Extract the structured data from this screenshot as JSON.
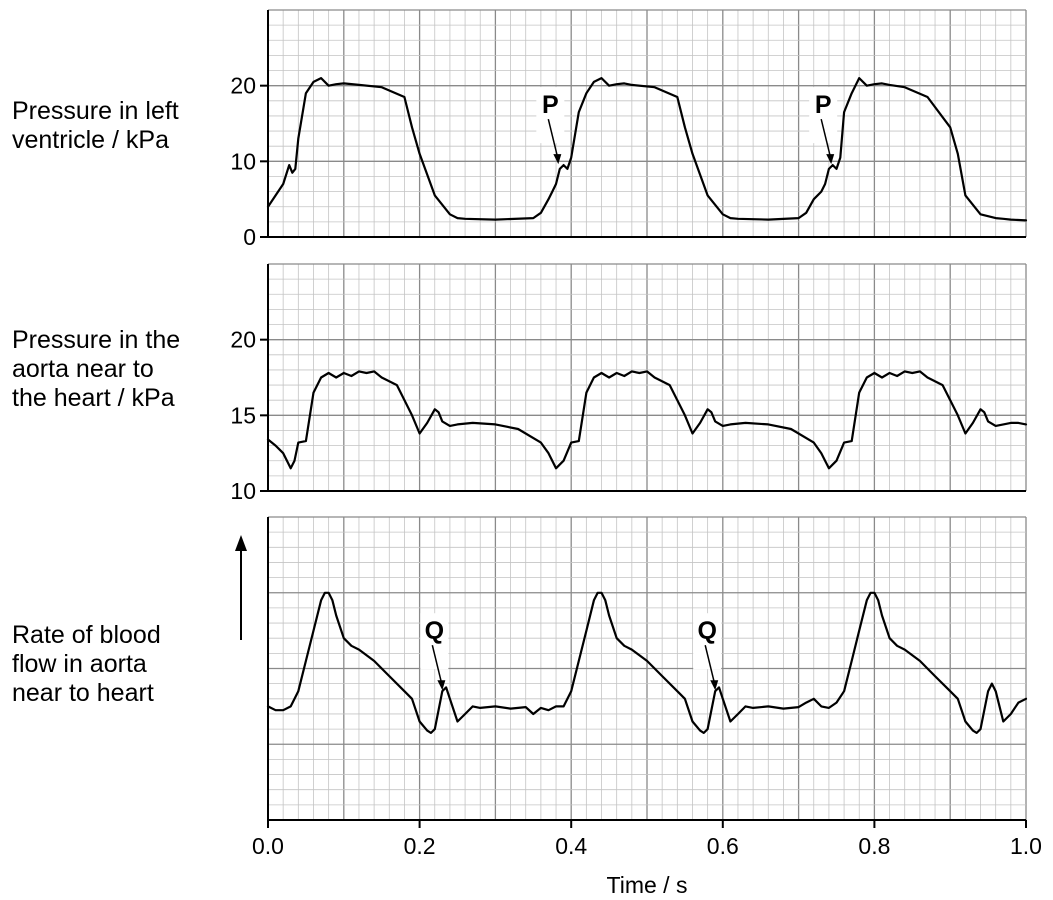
{
  "chart_data": [
    {
      "type": "line",
      "ylabel_lines": [
        "Pressure in left",
        "ventricle / kPa"
      ],
      "yticks": [
        0,
        10,
        20
      ],
      "ylim": [
        0,
        30
      ],
      "grid": true,
      "annotations": [
        {
          "label": "P",
          "x": 0.383,
          "y": 9.5
        },
        {
          "label": "P",
          "x": 0.743,
          "y": 9.5
        }
      ],
      "series": [
        {
          "x": [
            0.0,
            0.01,
            0.02,
            0.028,
            0.032,
            0.036,
            0.04,
            0.05,
            0.06,
            0.07,
            0.08,
            0.09,
            0.1,
            0.12,
            0.15,
            0.18,
            0.19,
            0.2,
            0.22,
            0.24,
            0.25,
            0.26,
            0.3,
            0.35,
            0.36,
            0.37,
            0.375,
            0.38,
            0.385,
            0.39,
            0.395,
            0.4,
            0.41,
            0.42,
            0.43,
            0.44,
            0.45,
            0.46,
            0.47,
            0.48,
            0.51,
            0.54,
            0.55,
            0.56,
            0.58,
            0.6,
            0.61,
            0.62,
            0.66,
            0.7,
            0.71,
            0.72,
            0.73,
            0.735,
            0.74,
            0.745,
            0.75,
            0.755,
            0.76,
            0.77,
            0.78,
            0.79,
            0.8,
            0.81,
            0.82,
            0.84,
            0.87,
            0.9,
            0.91,
            0.92,
            0.94,
            0.96,
            0.97,
            0.98,
            1.0
          ],
          "y": [
            4.0,
            5.5,
            7.0,
            9.5,
            8.5,
            9.0,
            13.0,
            19.0,
            20.5,
            21.0,
            20.0,
            20.2,
            20.3,
            20.1,
            19.8,
            18.5,
            14.5,
            11.0,
            5.5,
            3.0,
            2.5,
            2.4,
            2.3,
            2.5,
            3.2,
            5.0,
            6.0,
            7.0,
            9.0,
            9.5,
            9.0,
            10.5,
            16.5,
            19.0,
            20.5,
            21.0,
            20.0,
            20.2,
            20.3,
            20.1,
            19.8,
            18.5,
            14.5,
            11.0,
            5.5,
            3.0,
            2.5,
            2.4,
            2.3,
            2.5,
            3.2,
            5.0,
            6.0,
            7.0,
            9.0,
            9.5,
            9.0,
            10.5,
            16.5,
            19.0,
            21.0,
            20.0,
            20.2,
            20.3,
            20.1,
            19.8,
            18.5,
            14.5,
            11.0,
            5.5,
            3.0,
            2.5,
            2.4,
            2.3,
            2.2
          ]
        }
      ]
    },
    {
      "type": "line",
      "ylabel_lines": [
        "Pressure in the",
        "aorta near to",
        "the heart / kPa"
      ],
      "yticks": [
        10,
        15,
        20
      ],
      "ylim": [
        10,
        25
      ],
      "grid": true,
      "series": [
        {
          "x": [
            0.0,
            0.01,
            0.02,
            0.03,
            0.035,
            0.04,
            0.05,
            0.06,
            0.07,
            0.08,
            0.09,
            0.1,
            0.11,
            0.12,
            0.13,
            0.14,
            0.15,
            0.17,
            0.19,
            0.2,
            0.21,
            0.22,
            0.225,
            0.23,
            0.24,
            0.25,
            0.27,
            0.3,
            0.33,
            0.36,
            0.37,
            0.38,
            0.39,
            0.4,
            0.41,
            0.42,
            0.43,
            0.44,
            0.45,
            0.46,
            0.47,
            0.48,
            0.49,
            0.5,
            0.51,
            0.53,
            0.55,
            0.56,
            0.57,
            0.58,
            0.585,
            0.59,
            0.6,
            0.61,
            0.63,
            0.66,
            0.69,
            0.72,
            0.73,
            0.74,
            0.75,
            0.76,
            0.77,
            0.78,
            0.79,
            0.8,
            0.81,
            0.82,
            0.83,
            0.84,
            0.85,
            0.86,
            0.87,
            0.89,
            0.91,
            0.92,
            0.93,
            0.94,
            0.945,
            0.95,
            0.96,
            0.97,
            0.98,
            0.99,
            1.0
          ],
          "y": [
            13.4,
            13.0,
            12.5,
            11.5,
            12.0,
            13.2,
            13.3,
            16.5,
            17.5,
            17.8,
            17.5,
            17.8,
            17.6,
            17.9,
            17.8,
            17.9,
            17.5,
            17.0,
            15.0,
            13.8,
            14.5,
            15.4,
            15.2,
            14.6,
            14.3,
            14.4,
            14.5,
            14.4,
            14.1,
            13.2,
            12.5,
            11.5,
            12.0,
            13.2,
            13.3,
            16.5,
            17.5,
            17.8,
            17.5,
            17.8,
            17.6,
            17.9,
            17.8,
            17.9,
            17.5,
            17.0,
            15.0,
            13.8,
            14.5,
            15.4,
            15.2,
            14.6,
            14.3,
            14.4,
            14.5,
            14.4,
            14.1,
            13.2,
            12.5,
            11.5,
            12.0,
            13.2,
            13.3,
            16.5,
            17.5,
            17.8,
            17.5,
            17.8,
            17.6,
            17.9,
            17.8,
            17.9,
            17.5,
            17.0,
            15.0,
            13.8,
            14.5,
            15.4,
            15.2,
            14.6,
            14.3,
            14.4,
            14.5,
            14.5,
            14.4
          ]
        }
      ]
    },
    {
      "type": "line",
      "ylabel_lines": [
        "Rate of blood",
        "flow in aorta",
        "near to heart"
      ],
      "yticks": [],
      "ylim": [
        0,
        40
      ],
      "y_arrow": true,
      "grid": true,
      "annotations": [
        {
          "label": "Q",
          "x": 0.23,
          "y": 17
        },
        {
          "label": "Q",
          "x": 0.59,
          "y": 17
        }
      ],
      "series": [
        {
          "x": [
            0.0,
            0.01,
            0.02,
            0.03,
            0.04,
            0.05,
            0.06,
            0.07,
            0.075,
            0.08,
            0.085,
            0.09,
            0.1,
            0.11,
            0.12,
            0.14,
            0.16,
            0.18,
            0.19,
            0.2,
            0.21,
            0.215,
            0.22,
            0.23,
            0.235,
            0.24,
            0.25,
            0.26,
            0.27,
            0.28,
            0.3,
            0.32,
            0.34,
            0.35,
            0.36,
            0.37,
            0.38,
            0.39,
            0.4,
            0.41,
            0.42,
            0.43,
            0.435,
            0.44,
            0.445,
            0.45,
            0.46,
            0.47,
            0.48,
            0.5,
            0.52,
            0.54,
            0.55,
            0.56,
            0.57,
            0.575,
            0.58,
            0.59,
            0.595,
            0.6,
            0.61,
            0.62,
            0.63,
            0.64,
            0.66,
            0.68,
            0.7,
            0.71,
            0.72,
            0.73,
            0.74,
            0.75,
            0.76,
            0.77,
            0.78,
            0.79,
            0.795,
            0.8,
            0.805,
            0.81,
            0.82,
            0.83,
            0.84,
            0.86,
            0.88,
            0.9,
            0.91,
            0.92,
            0.93,
            0.935,
            0.94,
            0.95,
            0.955,
            0.96,
            0.97,
            0.98,
            0.99,
            1.0
          ],
          "y": [
            15.0,
            14.5,
            14.5,
            15.0,
            17.0,
            21.0,
            25.0,
            29.0,
            30.0,
            30.0,
            29.0,
            27.0,
            24.0,
            23.0,
            22.5,
            21.0,
            19.0,
            17.0,
            16.0,
            13.0,
            11.8,
            11.5,
            12.0,
            17.0,
            17.5,
            16.0,
            13.0,
            14.0,
            15.0,
            14.8,
            15.0,
            14.7,
            14.9,
            14.0,
            14.8,
            14.5,
            15.0,
            15.0,
            17.0,
            21.0,
            25.0,
            29.0,
            30.0,
            30.0,
            29.0,
            27.0,
            24.0,
            23.0,
            22.5,
            21.0,
            19.0,
            17.0,
            16.0,
            13.0,
            11.8,
            11.5,
            12.0,
            17.0,
            17.5,
            16.0,
            13.0,
            14.0,
            15.0,
            14.8,
            15.0,
            14.7,
            14.9,
            15.5,
            16.0,
            15.0,
            14.8,
            15.5,
            17.0,
            21.0,
            25.0,
            29.0,
            30.0,
            30.0,
            29.0,
            27.0,
            24.0,
            23.0,
            22.5,
            21.0,
            19.0,
            17.0,
            16.0,
            13.0,
            11.8,
            11.5,
            12.0,
            17.0,
            18.0,
            17.0,
            13.0,
            14.0,
            15.5,
            16.0
          ]
        }
      ]
    }
  ],
  "shared_x": {
    "xlabel": "Time / s",
    "xlim": [
      0.0,
      1.0
    ],
    "xticks": [
      "0.0",
      "0.2",
      "0.4",
      "0.6",
      "0.8",
      "1.0"
    ]
  }
}
